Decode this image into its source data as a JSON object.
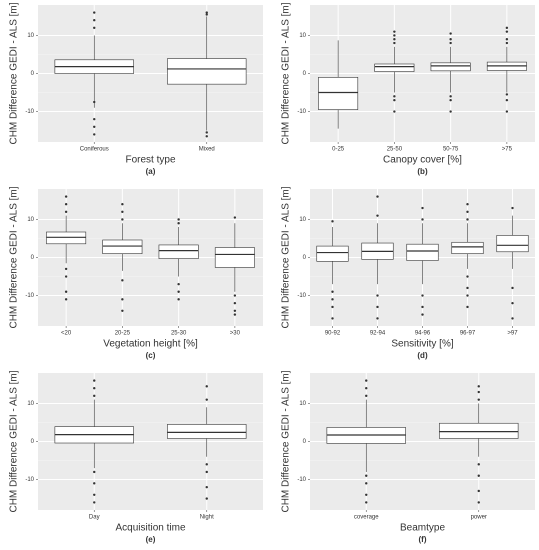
{
  "chart_data": [
    {
      "type": "box",
      "label": "(a)",
      "x_label": "Forest type",
      "y_label": "CHM Difference GEDI - ALS [m]",
      "categories": [
        "Coniferous",
        "Mixed"
      ],
      "boxes": [
        {
          "min": -9,
          "q1": 0,
          "median": 1.8,
          "q3": 3.6,
          "max": 10,
          "outliers": [
            -16,
            -14,
            -12,
            -7.5,
            12,
            14,
            16
          ]
        },
        {
          "min": -15,
          "q1": -2.8,
          "median": 1.2,
          "q3": 3.9,
          "max": 15,
          "outliers": [
            -16.5,
            -15.5,
            15.5,
            16
          ]
        }
      ],
      "ylim": [
        -18,
        18
      ],
      "yticks": [
        -10,
        0,
        10
      ],
      "grid": true
    },
    {
      "type": "box",
      "label": "(b)",
      "x_label": "Canopy cover [%]",
      "y_label": "CHM Difference GEDI - ALS [m]",
      "categories": [
        "0-25",
        "25-50",
        "50-75",
        ">75"
      ],
      "boxes": [
        {
          "min": -14.5,
          "q1": -9.5,
          "median": -5,
          "q3": -1,
          "max": 8.7,
          "outliers": []
        },
        {
          "min": -5,
          "q1": 0.5,
          "median": 1.8,
          "q3": 2.5,
          "max": 7,
          "outliers": [
            -10,
            -7,
            -6,
            8,
            9,
            10,
            11
          ]
        },
        {
          "min": -5,
          "q1": 0.7,
          "median": 2,
          "q3": 2.8,
          "max": 7,
          "outliers": [
            -10,
            -7,
            -6,
            8,
            9,
            10.5
          ]
        },
        {
          "min": -5,
          "q1": 0.8,
          "median": 2,
          "q3": 3,
          "max": 7,
          "outliers": [
            -10,
            -7,
            -5.5,
            8,
            9,
            11,
            12
          ]
        }
      ],
      "ylim": [
        -18,
        18
      ],
      "yticks": [
        -10,
        0,
        10
      ],
      "grid": true
    },
    {
      "type": "box",
      "label": "(c)",
      "x_label": "Vegetation height [%]",
      "y_label": "CHM Difference GEDI - ALS [m]",
      "categories": [
        "<20",
        "20-25",
        "25-30",
        ">30"
      ],
      "boxes": [
        {
          "min": -1.5,
          "q1": 3.6,
          "median": 5.3,
          "q3": 6.7,
          "max": 11,
          "outliers": [
            -11,
            -9,
            -5,
            -3,
            12,
            14,
            16
          ]
        },
        {
          "min": -3.5,
          "q1": 1,
          "median": 3,
          "q3": 4.6,
          "max": 9,
          "outliers": [
            -14,
            -11,
            -6,
            10,
            12,
            14
          ]
        },
        {
          "min": -5,
          "q1": -0.3,
          "median": 1.8,
          "q3": 3.3,
          "max": 8,
          "outliers": [
            -11,
            -9,
            -7,
            9,
            10
          ]
        },
        {
          "min": -9,
          "q1": -2.6,
          "median": 0.8,
          "q3": 2.6,
          "max": 9,
          "outliers": [
            -15,
            -14,
            -12,
            -10,
            10.5
          ]
        }
      ],
      "ylim": [
        -18,
        18
      ],
      "yticks": [
        -10,
        0,
        10
      ],
      "grid": true
    },
    {
      "type": "box",
      "label": "(d)",
      "x_label": "Sensitivity [%]",
      "y_label": "CHM Difference GEDI - ALS [m]",
      "categories": [
        "90-92",
        "92-94",
        "94-96",
        "96-97",
        ">97"
      ],
      "boxes": [
        {
          "min": -7,
          "q1": -1,
          "median": 1.3,
          "q3": 3,
          "max": 8,
          "outliers": [
            -16,
            -13,
            -11,
            -9,
            9.5
          ]
        },
        {
          "min": -7,
          "q1": -0.5,
          "median": 1.6,
          "q3": 3.8,
          "max": 9,
          "outliers": [
            -16,
            -13,
            -10,
            11,
            16
          ]
        },
        {
          "min": -7,
          "q1": -0.8,
          "median": 1.7,
          "q3": 3.5,
          "max": 9,
          "outliers": [
            -15,
            -13,
            -10,
            10,
            13
          ]
        },
        {
          "min": -3,
          "q1": 1,
          "median": 2.8,
          "q3": 4,
          "max": 9,
          "outliers": [
            -13,
            -10,
            -8,
            -5,
            10,
            12,
            14
          ]
        },
        {
          "min": -3,
          "q1": 1.5,
          "median": 3.2,
          "q3": 5.8,
          "max": 11,
          "outliers": [
            -16,
            -12,
            -8,
            13
          ]
        }
      ],
      "ylim": [
        -18,
        18
      ],
      "yticks": [
        -10,
        0,
        10
      ],
      "grid": true
    },
    {
      "type": "box",
      "label": "(e)",
      "x_label": "Acquisition time",
      "y_label": "CHM Difference GEDI - ALS [m]",
      "categories": [
        "Day",
        "Night"
      ],
      "boxes": [
        {
          "min": -7,
          "q1": -0.4,
          "median": 1.8,
          "q3": 3.9,
          "max": 11,
          "outliers": [
            -16,
            -14,
            -11,
            -8,
            12,
            14,
            16
          ]
        },
        {
          "min": -4,
          "q1": 0.8,
          "median": 2.4,
          "q3": 4.5,
          "max": 9,
          "outliers": [
            -15,
            -12,
            -8,
            -6,
            11,
            14.5
          ]
        }
      ],
      "ylim": [
        -18,
        18
      ],
      "yticks": [
        -10,
        0,
        10
      ],
      "grid": true
    },
    {
      "type": "box",
      "label": "(f)",
      "x_label": "Beamtype",
      "y_label": "CHM Difference GEDI - ALS [m]",
      "categories": [
        "coverage",
        "power"
      ],
      "boxes": [
        {
          "min": -8,
          "q1": -0.5,
          "median": 1.7,
          "q3": 3.7,
          "max": 11,
          "outliers": [
            -16,
            -14,
            -11,
            -9,
            12,
            14,
            16
          ]
        },
        {
          "min": -4,
          "q1": 0.8,
          "median": 2.6,
          "q3": 4.8,
          "max": 10,
          "outliers": [
            -16,
            -13,
            -9,
            -6,
            11,
            13,
            14.5
          ]
        }
      ],
      "ylim": [
        -18,
        18
      ],
      "yticks": [
        -10,
        0,
        10
      ],
      "grid": true
    }
  ]
}
